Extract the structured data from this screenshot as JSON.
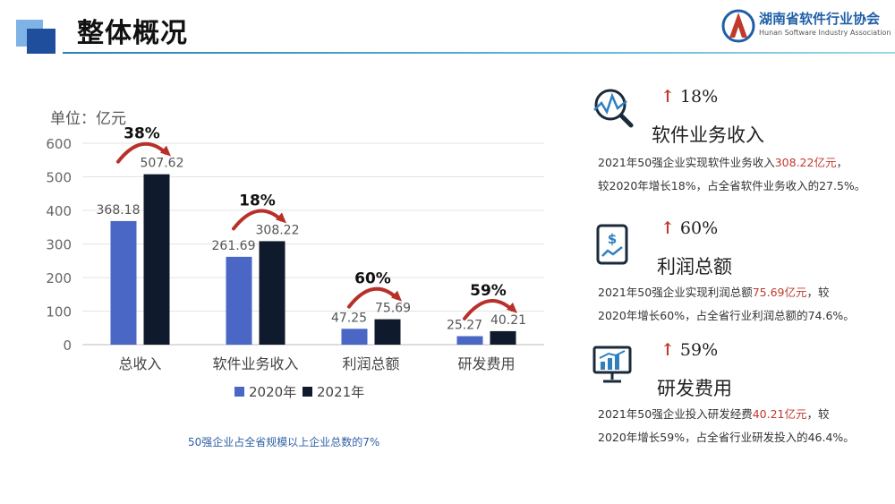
{
  "header": {
    "title": "整体概况",
    "association_cn": "湖南省软件行业协会",
    "association_en": "Hunan Software Industry Association"
  },
  "colors": {
    "series_2020": "#4a67c5",
    "series_2021": "#0f1b2d",
    "highlight": "#c0392b",
    "arrow": "#b9302a",
    "caption": "#2f5fa5"
  },
  "chart_data": {
    "type": "bar",
    "unit_label": "单位：亿元",
    "categories": [
      "总收入",
      "软件业务收入",
      "利润总额",
      "研发费用"
    ],
    "series": [
      {
        "name": "2020年",
        "values": [
          368.18,
          261.69,
          47.25,
          25.27
        ]
      },
      {
        "name": "2021年",
        "values": [
          507.62,
          308.22,
          75.69,
          40.21
        ]
      }
    ],
    "growth_labels": [
      "38%",
      "18%",
      "60%",
      "59%"
    ],
    "ylim": [
      0,
      600
    ],
    "yticks": [
      0,
      100,
      200,
      300,
      400,
      500,
      600
    ],
    "grid": true,
    "legend": "bottom",
    "caption": "50强企业占全省规模以上企业总数的7%"
  },
  "panels": [
    {
      "icon": "chart-magnifier-icon",
      "growth": "18%",
      "title": "软件业务收入",
      "line1_pre": "2021年50强企业实现软件业务收入",
      "line1_hl": "308.22亿元",
      "line1_post": "，",
      "line2": "较2020年增长18%，占全省软件业务收入的27.5%。"
    },
    {
      "icon": "tablet-dollar-icon",
      "growth": "60%",
      "title": "利润总额",
      "line1_pre": "2021年50强企业实现利润总额",
      "line1_hl": "75.69亿元",
      "line1_post": "，较",
      "line2": "2020年增长60%，占全省行业利润总额的74.6%。"
    },
    {
      "icon": "monitor-chart-icon",
      "growth": "59%",
      "title": "研发费用",
      "line1_pre": "2021年50强企业投入研发经费",
      "line1_hl": "40.21亿元",
      "line1_post": "，较",
      "line2": "2020年增长59%，占全省行业研发投入的46.4%。"
    }
  ]
}
